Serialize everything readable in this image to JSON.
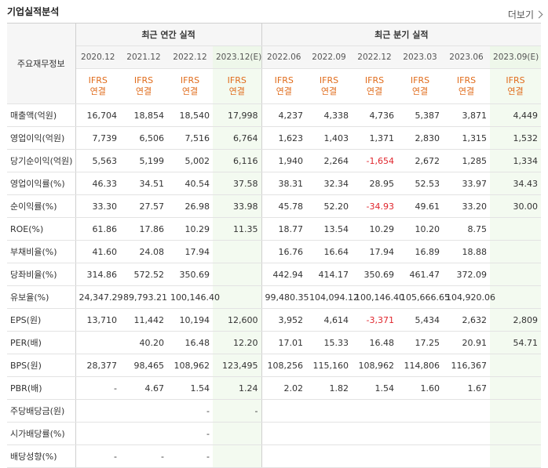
{
  "header": {
    "title": "기업실적분석",
    "more": "더보기"
  },
  "table": {
    "corner": "주요재무정보",
    "group_annual": "최근 연간 실적",
    "group_quarter": "최근 분기 실적",
    "periods": [
      "2020.12",
      "2021.12",
      "2022.12",
      "2023.12(E)",
      "2022.06",
      "2022.09",
      "2022.12",
      "2023.03",
      "2023.06",
      "2023.09(E)"
    ],
    "ifrs_top": "IFRS",
    "ifrs_bottom": "연결",
    "rows": [
      {
        "label": "매출액(억원)",
        "values": [
          "16,704",
          "18,854",
          "18,540",
          "17,998",
          "4,237",
          "4,338",
          "4,736",
          "5,387",
          "3,871",
          "4,449"
        ]
      },
      {
        "label": "영업이익(억원)",
        "values": [
          "7,739",
          "6,506",
          "7,516",
          "6,764",
          "1,623",
          "1,403",
          "1,371",
          "2,830",
          "1,315",
          "1,532"
        ]
      },
      {
        "label": "당기순이익(억원)",
        "values": [
          "5,563",
          "5,199",
          "5,002",
          "6,116",
          "1,940",
          "2,264",
          "-1,654",
          "2,672",
          "1,285",
          "1,334"
        ]
      },
      {
        "label": "영업이익률(%)",
        "values": [
          "46.33",
          "34.51",
          "40.54",
          "37.58",
          "38.31",
          "32.34",
          "28.95",
          "52.53",
          "33.97",
          "34.43"
        ]
      },
      {
        "label": "순이익률(%)",
        "values": [
          "33.30",
          "27.57",
          "26.98",
          "33.98",
          "45.78",
          "52.20",
          "-34.93",
          "49.61",
          "33.20",
          "30.00"
        ]
      },
      {
        "label": "ROE(%)",
        "values": [
          "61.86",
          "17.86",
          "10.29",
          "11.35",
          "18.77",
          "13.54",
          "10.29",
          "10.20",
          "8.75",
          ""
        ]
      },
      {
        "label": "부채비율(%)",
        "values": [
          "41.60",
          "24.08",
          "17.94",
          "",
          "16.76",
          "16.64",
          "17.94",
          "16.89",
          "18.88",
          ""
        ]
      },
      {
        "label": "당좌비율(%)",
        "values": [
          "314.86",
          "572.52",
          "350.69",
          "",
          "442.94",
          "414.17",
          "350.69",
          "461.47",
          "372.09",
          ""
        ]
      },
      {
        "label": "유보율(%)",
        "values": [
          "24,347.29",
          "89,793.21",
          "100,146.40",
          "",
          "99,480.35",
          "104,094.12",
          "100,146.40",
          "105,666.65",
          "104,920.06",
          ""
        ]
      },
      {
        "label": "EPS(원)",
        "values": [
          "13,710",
          "11,442",
          "10,194",
          "12,600",
          "3,952",
          "4,614",
          "-3,371",
          "5,434",
          "2,632",
          "2,809"
        ]
      },
      {
        "label": "PER(배)",
        "values": [
          "",
          "40.20",
          "16.48",
          "12.20",
          "17.01",
          "15.33",
          "16.48",
          "17.25",
          "20.91",
          "54.71"
        ]
      },
      {
        "label": "BPS(원)",
        "values": [
          "28,377",
          "98,465",
          "108,962",
          "123,495",
          "108,256",
          "115,160",
          "108,962",
          "114,806",
          "116,367",
          ""
        ]
      },
      {
        "label": "PBR(배)",
        "values": [
          "-",
          "4.67",
          "1.54",
          "1.24",
          "2.02",
          "1.82",
          "1.54",
          "1.60",
          "1.67",
          ""
        ]
      },
      {
        "label": "주당배당금(원)",
        "values": [
          "",
          "",
          "-",
          "-",
          "",
          "",
          "",
          "",
          "",
          ""
        ]
      },
      {
        "label": "시가배당률(%)",
        "values": [
          "",
          "",
          "-",
          "",
          "",
          "",
          "",
          "",
          "",
          ""
        ]
      },
      {
        "label": "배당성향(%)",
        "values": [
          "-",
          "-",
          "-",
          "",
          "",
          "",
          "",
          "",
          "",
          ""
        ]
      }
    ]
  }
}
